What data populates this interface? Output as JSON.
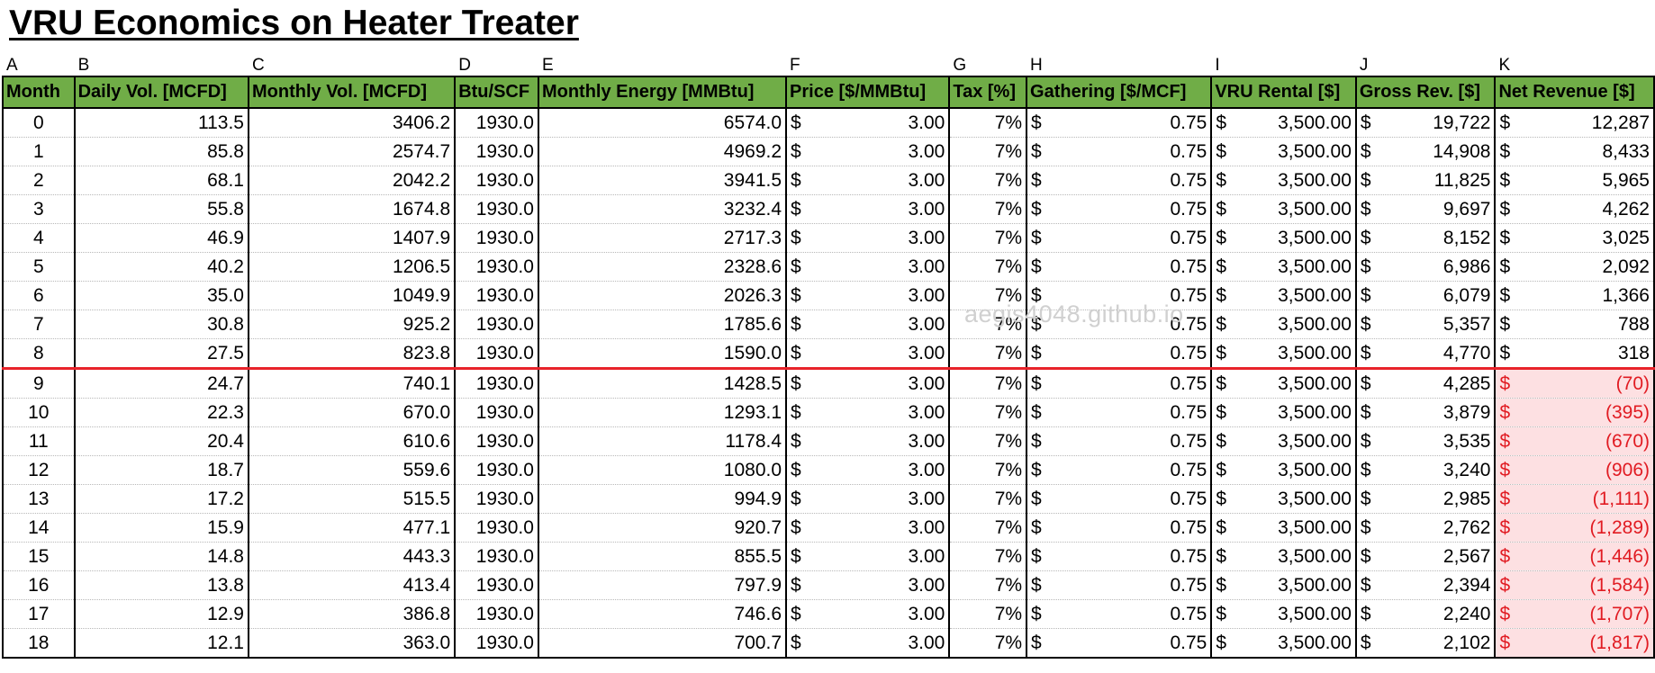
{
  "title": "VRU Economics on Heater Treater",
  "watermark": "aegis4048.github.io",
  "column_letters": [
    "A",
    "B",
    "C",
    "D",
    "E",
    "F",
    "G",
    "H",
    "I",
    "J",
    "K"
  ],
  "headers": [
    "Month",
    "Daily Vol. [MCFD]",
    "Monthly Vol. [MCFD]",
    "Btu/SCF",
    "Monthly Energy [MMBtu]",
    "Price [$/MMBtu]",
    "Tax [%]",
    "Gathering [$/MCF]",
    "VRU Rental [$]",
    "Gross Rev. [$]",
    "Net Revenue [$]"
  ],
  "currency_symbol": "$",
  "colors": {
    "header_bg": "#70ad47",
    "breakeven_line": "#e8232a",
    "negative_text": "#e11b22",
    "negative_bg": "#fde0e2"
  },
  "rows": [
    {
      "month": "0",
      "daily": "113.5",
      "monthly": "3406.2",
      "btu": "1930.0",
      "energy": "6574.0",
      "price": "3.00",
      "tax": "7%",
      "gathering": "0.75",
      "rental": "3,500.00",
      "gross": "19,722",
      "net": "12,287",
      "negative": false
    },
    {
      "month": "1",
      "daily": "85.8",
      "monthly": "2574.7",
      "btu": "1930.0",
      "energy": "4969.2",
      "price": "3.00",
      "tax": "7%",
      "gathering": "0.75",
      "rental": "3,500.00",
      "gross": "14,908",
      "net": "8,433",
      "negative": false
    },
    {
      "month": "2",
      "daily": "68.1",
      "monthly": "2042.2",
      "btu": "1930.0",
      "energy": "3941.5",
      "price": "3.00",
      "tax": "7%",
      "gathering": "0.75",
      "rental": "3,500.00",
      "gross": "11,825",
      "net": "5,965",
      "negative": false
    },
    {
      "month": "3",
      "daily": "55.8",
      "monthly": "1674.8",
      "btu": "1930.0",
      "energy": "3232.4",
      "price": "3.00",
      "tax": "7%",
      "gathering": "0.75",
      "rental": "3,500.00",
      "gross": "9,697",
      "net": "4,262",
      "negative": false
    },
    {
      "month": "4",
      "daily": "46.9",
      "monthly": "1407.9",
      "btu": "1930.0",
      "energy": "2717.3",
      "price": "3.00",
      "tax": "7%",
      "gathering": "0.75",
      "rental": "3,500.00",
      "gross": "8,152",
      "net": "3,025",
      "negative": false
    },
    {
      "month": "5",
      "daily": "40.2",
      "monthly": "1206.5",
      "btu": "1930.0",
      "energy": "2328.6",
      "price": "3.00",
      "tax": "7%",
      "gathering": "0.75",
      "rental": "3,500.00",
      "gross": "6,986",
      "net": "2,092",
      "negative": false
    },
    {
      "month": "6",
      "daily": "35.0",
      "monthly": "1049.9",
      "btu": "1930.0",
      "energy": "2026.3",
      "price": "3.00",
      "tax": "7%",
      "gathering": "0.75",
      "rental": "3,500.00",
      "gross": "6,079",
      "net": "1,366",
      "negative": false
    },
    {
      "month": "7",
      "daily": "30.8",
      "monthly": "925.2",
      "btu": "1930.0",
      "energy": "1785.6",
      "price": "3.00",
      "tax": "7%",
      "gathering": "0.75",
      "rental": "3,500.00",
      "gross": "5,357",
      "net": "788",
      "negative": false
    },
    {
      "month": "8",
      "daily": "27.5",
      "monthly": "823.8",
      "btu": "1930.0",
      "energy": "1590.0",
      "price": "3.00",
      "tax": "7%",
      "gathering": "0.75",
      "rental": "3,500.00",
      "gross": "4,770",
      "net": "318",
      "negative": false
    },
    {
      "month": "9",
      "daily": "24.7",
      "monthly": "740.1",
      "btu": "1930.0",
      "energy": "1428.5",
      "price": "3.00",
      "tax": "7%",
      "gathering": "0.75",
      "rental": "3,500.00",
      "gross": "4,285",
      "net": "(70)",
      "negative": true
    },
    {
      "month": "10",
      "daily": "22.3",
      "monthly": "670.0",
      "btu": "1930.0",
      "energy": "1293.1",
      "price": "3.00",
      "tax": "7%",
      "gathering": "0.75",
      "rental": "3,500.00",
      "gross": "3,879",
      "net": "(395)",
      "negative": true
    },
    {
      "month": "11",
      "daily": "20.4",
      "monthly": "610.6",
      "btu": "1930.0",
      "energy": "1178.4",
      "price": "3.00",
      "tax": "7%",
      "gathering": "0.75",
      "rental": "3,500.00",
      "gross": "3,535",
      "net": "(670)",
      "negative": true
    },
    {
      "month": "12",
      "daily": "18.7",
      "monthly": "559.6",
      "btu": "1930.0",
      "energy": "1080.0",
      "price": "3.00",
      "tax": "7%",
      "gathering": "0.75",
      "rental": "3,500.00",
      "gross": "3,240",
      "net": "(906)",
      "negative": true
    },
    {
      "month": "13",
      "daily": "17.2",
      "monthly": "515.5",
      "btu": "1930.0",
      "energy": "994.9",
      "price": "3.00",
      "tax": "7%",
      "gathering": "0.75",
      "rental": "3,500.00",
      "gross": "2,985",
      "net": "(1,111)",
      "negative": true
    },
    {
      "month": "14",
      "daily": "15.9",
      "monthly": "477.1",
      "btu": "1930.0",
      "energy": "920.7",
      "price": "3.00",
      "tax": "7%",
      "gathering": "0.75",
      "rental": "3,500.00",
      "gross": "2,762",
      "net": "(1,289)",
      "negative": true
    },
    {
      "month": "15",
      "daily": "14.8",
      "monthly": "443.3",
      "btu": "1930.0",
      "energy": "855.5",
      "price": "3.00",
      "tax": "7%",
      "gathering": "0.75",
      "rental": "3,500.00",
      "gross": "2,567",
      "net": "(1,446)",
      "negative": true
    },
    {
      "month": "16",
      "daily": "13.8",
      "monthly": "413.4",
      "btu": "1930.0",
      "energy": "797.9",
      "price": "3.00",
      "tax": "7%",
      "gathering": "0.75",
      "rental": "3,500.00",
      "gross": "2,394",
      "net": "(1,584)",
      "negative": true
    },
    {
      "month": "17",
      "daily": "12.9",
      "monthly": "386.8",
      "btu": "1930.0",
      "energy": "746.6",
      "price": "3.00",
      "tax": "7%",
      "gathering": "0.75",
      "rental": "3,500.00",
      "gross": "2,240",
      "net": "(1,707)",
      "negative": true
    },
    {
      "month": "18",
      "daily": "12.1",
      "monthly": "363.0",
      "btu": "1930.0",
      "energy": "700.7",
      "price": "3.00",
      "tax": "7%",
      "gathering": "0.75",
      "rental": "3,500.00",
      "gross": "2,102",
      "net": "(1,817)",
      "negative": true
    }
  ]
}
